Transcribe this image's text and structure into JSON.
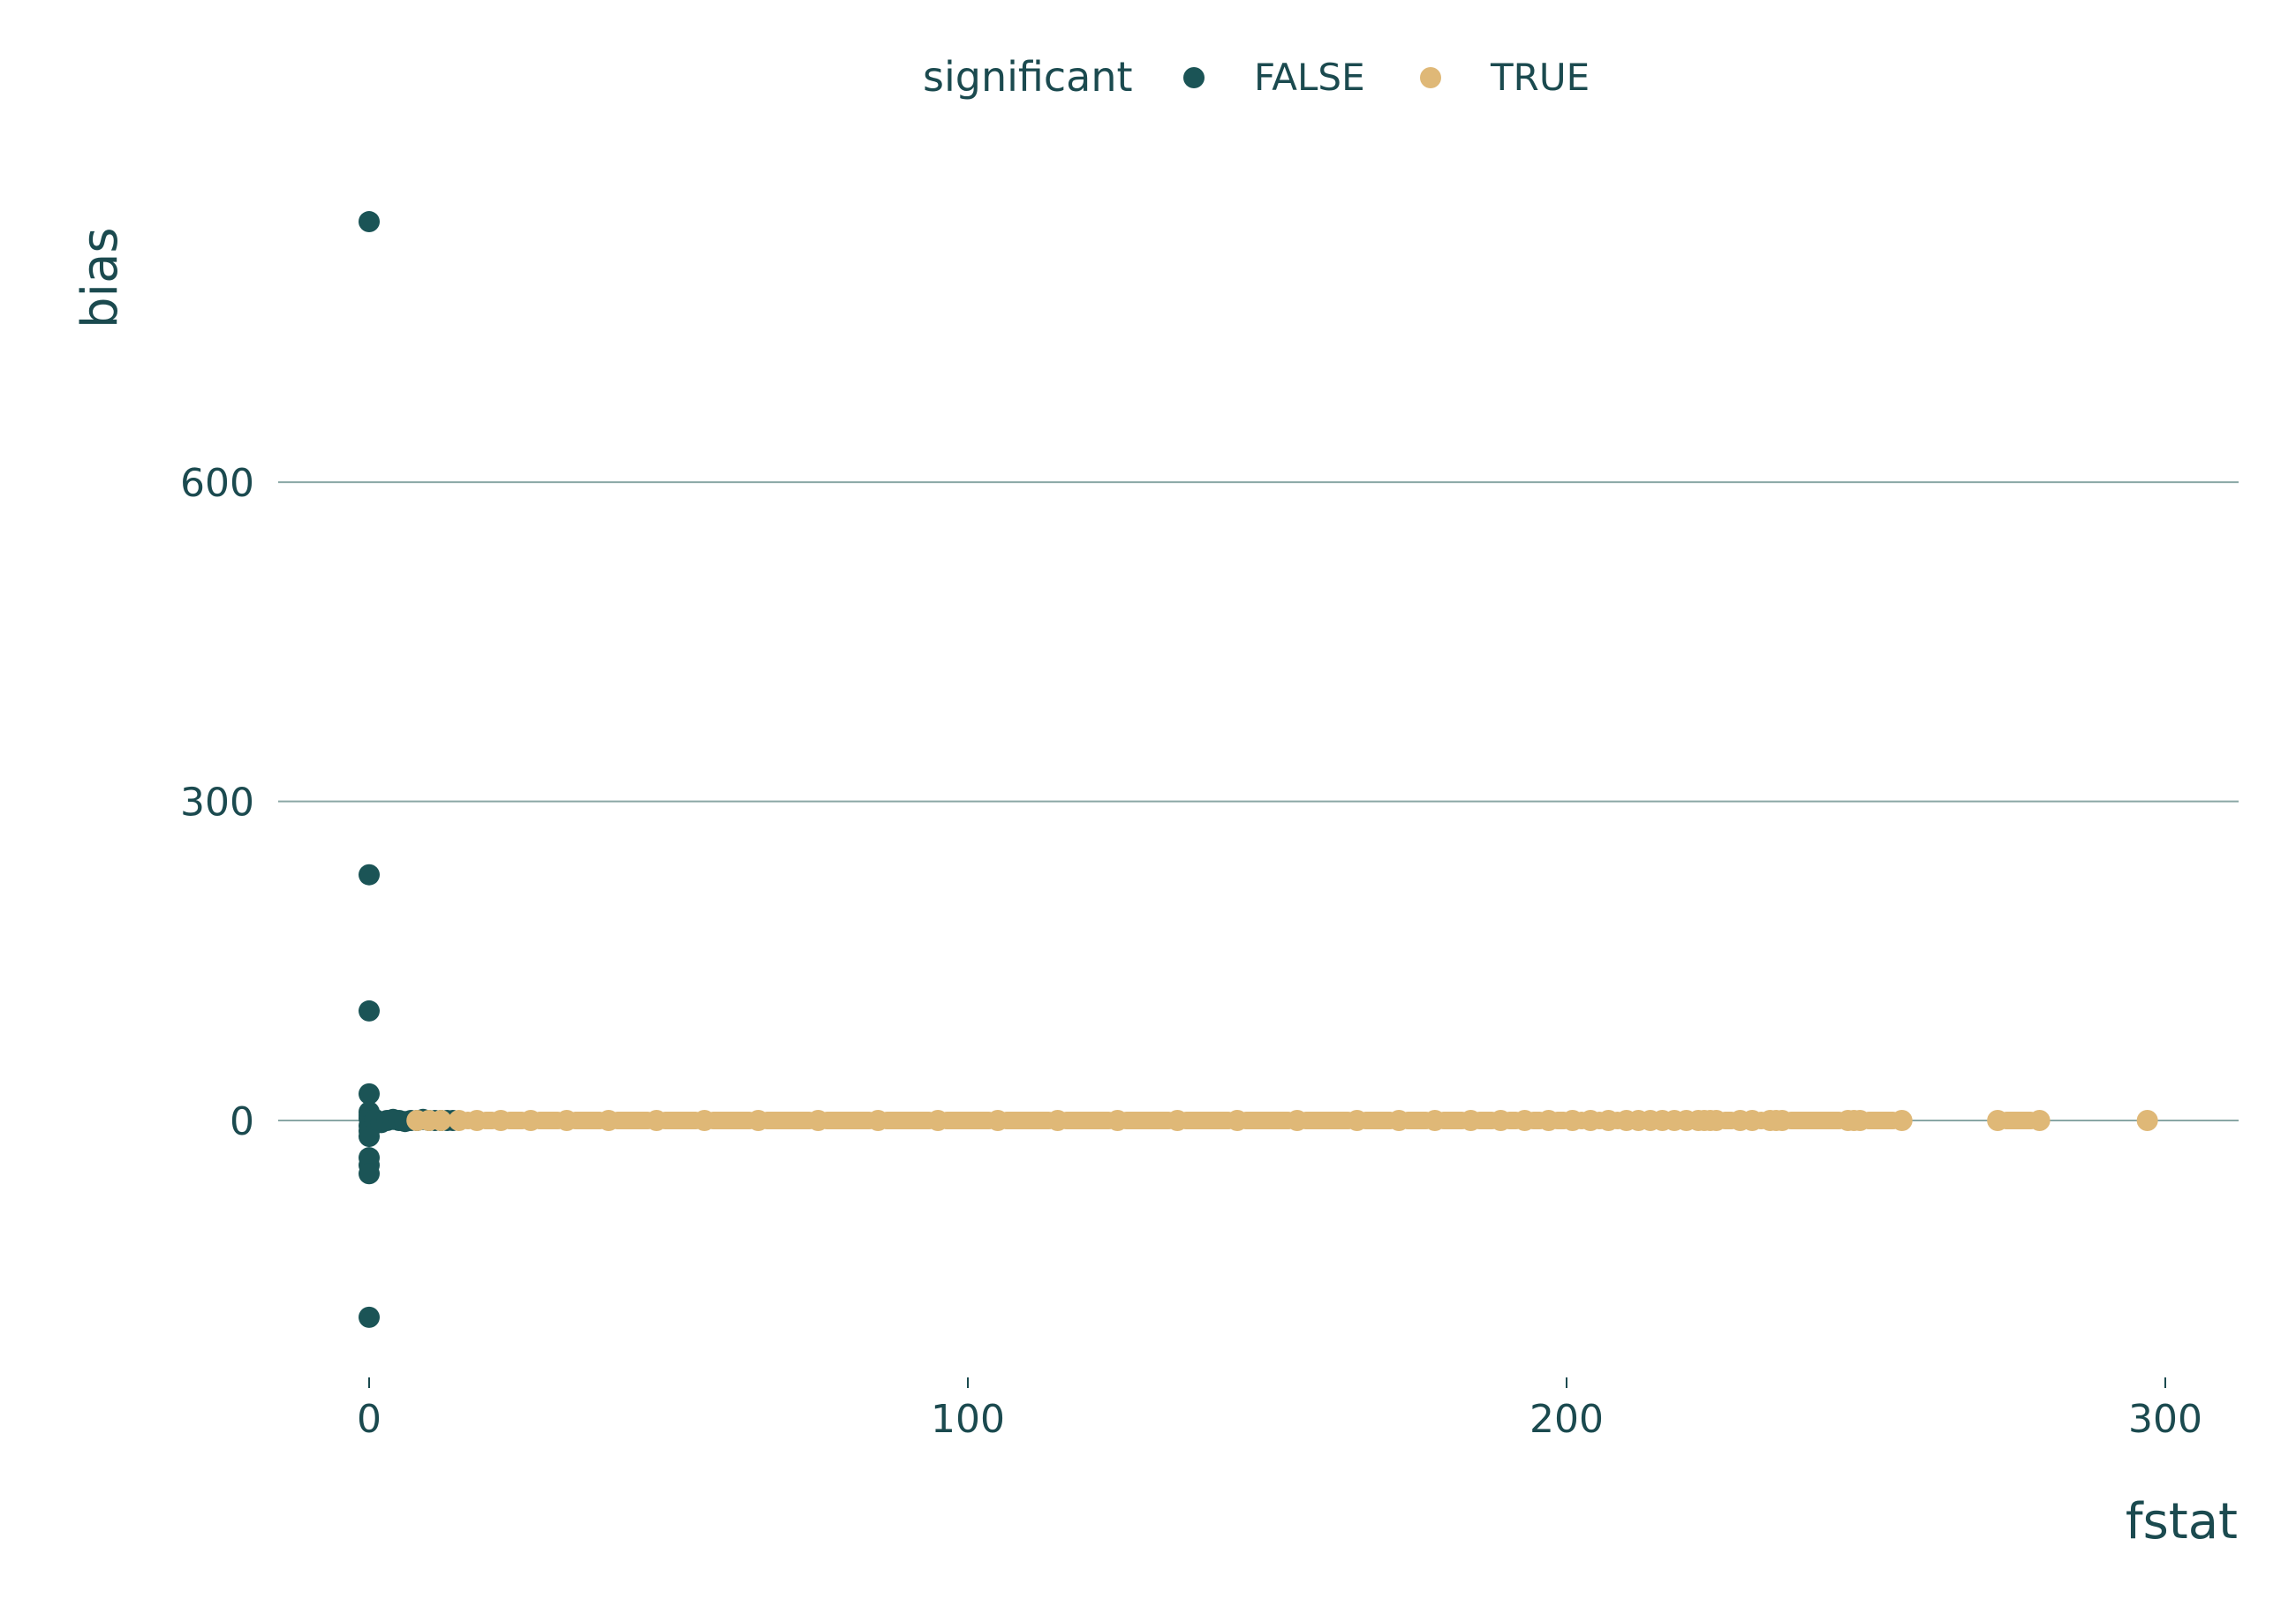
{
  "chart_data": {
    "type": "scatter",
    "title": "",
    "xlabel": "fstat",
    "ylabel": "bias",
    "xlim": [
      -15,
      310
    ],
    "ylim": [
      -255,
      855
    ],
    "x_ticks": [
      0,
      100,
      200,
      300
    ],
    "y_ticks": [
      0,
      300,
      600
    ],
    "grid": "horizontal-major",
    "legend": {
      "title": "significant",
      "position": "top",
      "entries": [
        {
          "label": "FALSE",
          "color": "#1b5456"
        },
        {
          "label": "TRUE",
          "color": "#dfb877"
        }
      ]
    },
    "series": [
      {
        "name": "FALSE",
        "color": "#1b5456",
        "points": [
          [
            0,
            845
          ],
          [
            0,
            231
          ],
          [
            0,
            103
          ],
          [
            0,
            25
          ],
          [
            0,
            8
          ],
          [
            0,
            5
          ],
          [
            0,
            2
          ],
          [
            0,
            -5
          ],
          [
            0,
            -10
          ],
          [
            0,
            -15
          ],
          [
            0,
            -35
          ],
          [
            0,
            -42
          ],
          [
            0,
            -50
          ],
          [
            0,
            -185
          ],
          [
            1,
            1
          ],
          [
            2,
            -2
          ],
          [
            3,
            0
          ],
          [
            4,
            1
          ],
          [
            5,
            0
          ],
          [
            6,
            -1
          ],
          [
            7,
            0
          ],
          [
            8,
            0
          ],
          [
            9,
            1
          ],
          [
            10,
            0
          ],
          [
            11,
            0
          ],
          [
            12,
            0
          ],
          [
            13,
            0
          ],
          [
            14,
            0
          ]
        ]
      },
      {
        "name": "TRUE",
        "color": "#dfb877",
        "points": [
          [
            8,
            0
          ],
          [
            10,
            0
          ],
          [
            12,
            0
          ],
          [
            15,
            0
          ],
          [
            18,
            0
          ],
          [
            22,
            0
          ],
          [
            27,
            0
          ],
          [
            33,
            0
          ],
          [
            40,
            0
          ],
          [
            48,
            0
          ],
          [
            56,
            0
          ],
          [
            65,
            0
          ],
          [
            75,
            0
          ],
          [
            85,
            0
          ],
          [
            95,
            0
          ],
          [
            105,
            0
          ],
          [
            115,
            0
          ],
          [
            125,
            0
          ],
          [
            135,
            0
          ],
          [
            145,
            0
          ],
          [
            155,
            0
          ],
          [
            165,
            0
          ],
          [
            172,
            0
          ],
          [
            178,
            0
          ],
          [
            184,
            0
          ],
          [
            189,
            0
          ],
          [
            193,
            0
          ],
          [
            197,
            0
          ],
          [
            201,
            0
          ],
          [
            204,
            0
          ],
          [
            207,
            0
          ],
          [
            210,
            0
          ],
          [
            212,
            0
          ],
          [
            214,
            0
          ],
          [
            216,
            0
          ],
          [
            218,
            0
          ],
          [
            220,
            0
          ],
          [
            222,
            0
          ],
          [
            223,
            0
          ],
          [
            224,
            0
          ],
          [
            225,
            0
          ],
          [
            229,
            0
          ],
          [
            231,
            0
          ],
          [
            234,
            0
          ],
          [
            235,
            0
          ],
          [
            236,
            0
          ],
          [
            247,
            0
          ],
          [
            248,
            0
          ],
          [
            249,
            0
          ],
          [
            256,
            0
          ],
          [
            272,
            0
          ],
          [
            279,
            0
          ],
          [
            297,
            0
          ]
        ]
      }
    ]
  }
}
